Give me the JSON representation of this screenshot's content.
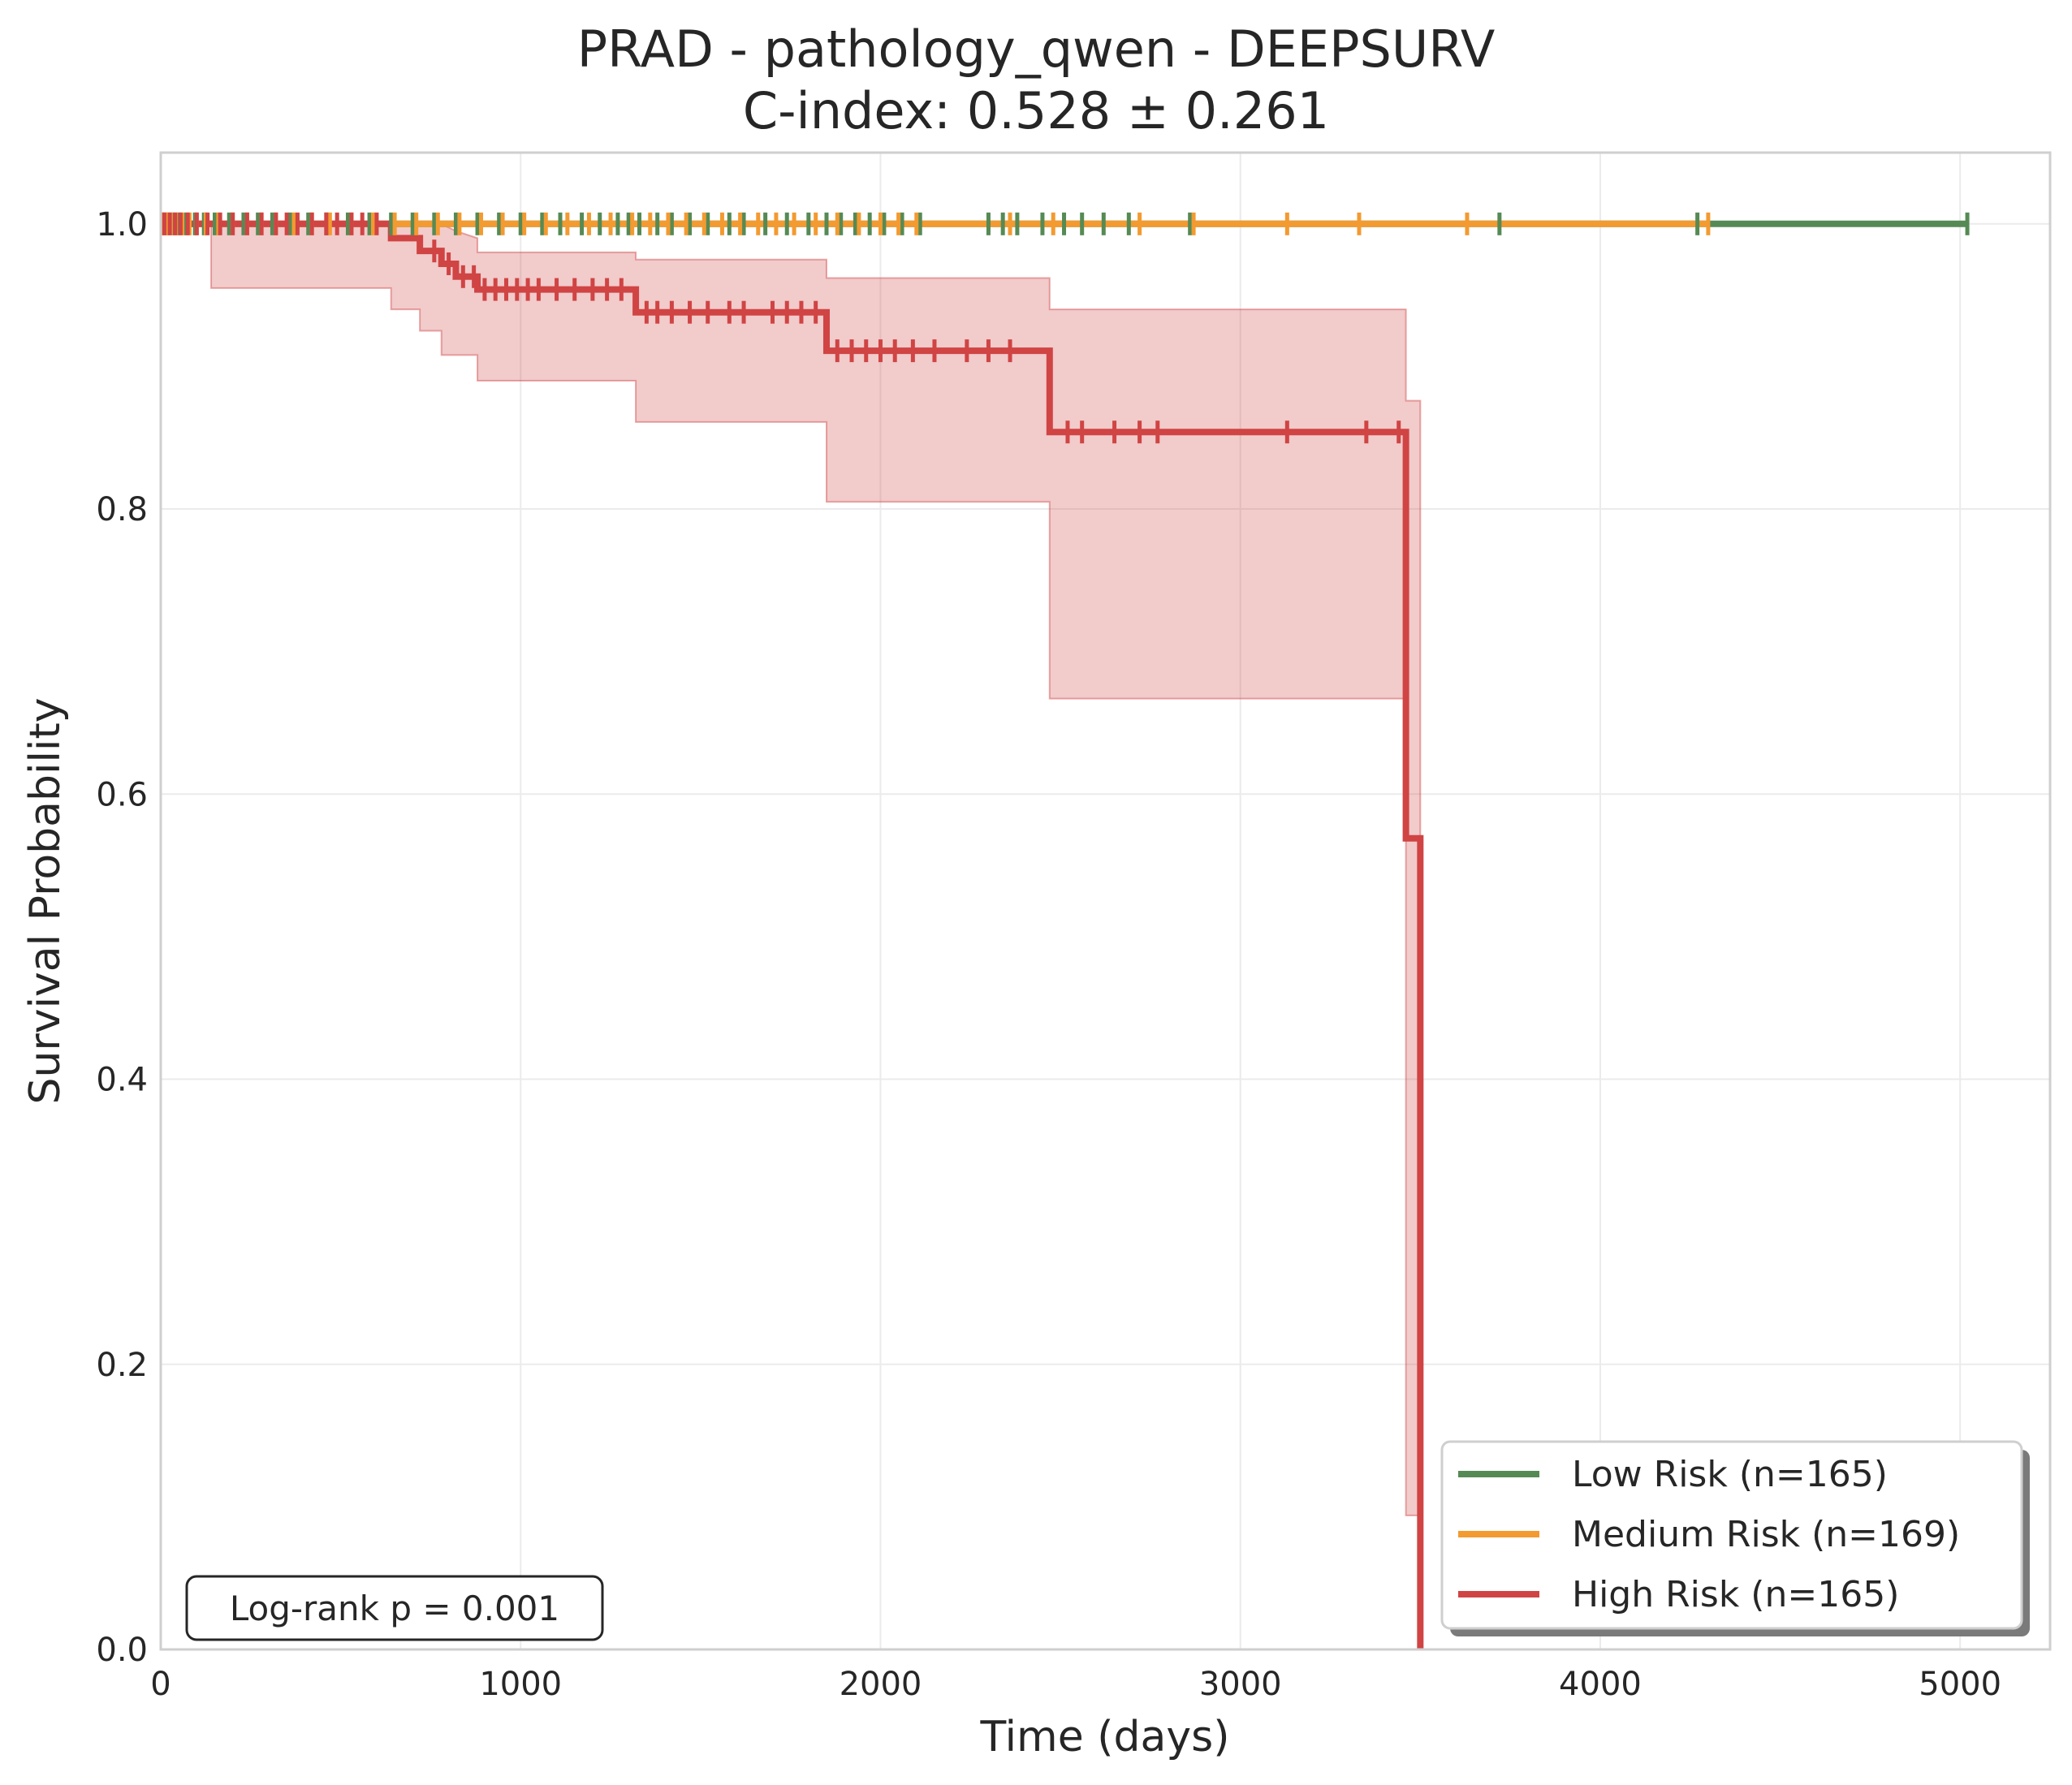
{
  "chart_data": {
    "type": "line",
    "subtype": "kaplan-meier",
    "title": "PRAD - pathology_qwen - DEEPSURV",
    "subtitle": "C-index: 0.528 ± 0.261",
    "xlabel": "Time (days)",
    "ylabel": "Survival Probability",
    "xlim": [
      0,
      5250
    ],
    "ylim": [
      0,
      1.05
    ],
    "xticks": [
      0,
      1000,
      2000,
      3000,
      4000,
      5000
    ],
    "yticks": [
      0.0,
      0.2,
      0.4,
      0.6,
      0.8,
      1.0
    ],
    "xtick_labels": [
      "0",
      "1000",
      "2000",
      "3000",
      "4000",
      "5000"
    ],
    "ytick_labels": [
      "0.0",
      "0.2",
      "0.4",
      "0.6",
      "0.8",
      "1.0"
    ],
    "grid": true,
    "legend_position": "bottom-right",
    "annotation": "Log-rank p = 0.001",
    "series": [
      {
        "name": "Low Risk (n=165)",
        "color": "#558a55",
        "steps": [
          [
            0,
            1.0
          ],
          [
            5020,
            1.0
          ]
        ],
        "censor_times": [
          8,
          20,
          35,
          50,
          70,
          95,
          120,
          150,
          190,
          230,
          270,
          310,
          360,
          410,
          460,
          520,
          580,
          640,
          700,
          760,
          820,
          880,
          940,
          1000,
          1060,
          1110,
          1170,
          1220,
          1270,
          1300,
          1330,
          1380,
          1420,
          1470,
          1520,
          1580,
          1620,
          1680,
          1740,
          1800,
          1850,
          1890,
          1930,
          1970,
          2010,
          2060,
          2110,
          2300,
          2340,
          2380,
          2450,
          2510,
          2560,
          2620,
          2690,
          2860,
          3720,
          4270,
          5020
        ]
      },
      {
        "name": "Medium Risk (n=169)",
        "color": "#f39a30",
        "steps": [
          [
            0,
            1.0
          ],
          [
            4300,
            1.0
          ]
        ],
        "censor_times": [
          5,
          15,
          28,
          42,
          60,
          80,
          100,
          125,
          160,
          200,
          240,
          280,
          320,
          370,
          420,
          470,
          530,
          590,
          650,
          710,
          770,
          830,
          890,
          950,
          1010,
          1070,
          1130,
          1190,
          1250,
          1310,
          1360,
          1410,
          1460,
          1510,
          1560,
          1610,
          1660,
          1710,
          1760,
          1820,
          1880,
          1940,
          2000,
          2050,
          2100,
          2360,
          2480,
          2720,
          2870,
          3130,
          3330,
          3630,
          4300
        ]
      },
      {
        "name": "High Risk (n=165)",
        "color": "#d04444",
        "steps": [
          [
            0,
            1.0
          ],
          [
            640,
            1.0
          ],
          [
            640,
            0.99
          ],
          [
            720,
            0.99
          ],
          [
            720,
            0.981
          ],
          [
            780,
            0.981
          ],
          [
            780,
            0.972
          ],
          [
            820,
            0.972
          ],
          [
            820,
            0.963
          ],
          [
            880,
            0.963
          ],
          [
            880,
            0.954
          ],
          [
            1320,
            0.954
          ],
          [
            1320,
            0.938
          ],
          [
            1850,
            0.938
          ],
          [
            1850,
            0.911
          ],
          [
            2470,
            0.911
          ],
          [
            2470,
            0.854
          ],
          [
            3460,
            0.854
          ],
          [
            3460,
            0.569
          ],
          [
            3500,
            0.569
          ],
          [
            3500,
            0.0
          ]
        ],
        "ci_upper": [
          [
            0,
            1.0
          ],
          [
            640,
            1.0
          ],
          [
            720,
            1.0
          ],
          [
            780,
            1.0
          ],
          [
            820,
            0.995
          ],
          [
            880,
            0.99
          ],
          [
            880,
            0.98
          ],
          [
            1320,
            0.98
          ],
          [
            1320,
            0.975
          ],
          [
            1850,
            0.975
          ],
          [
            1850,
            0.962
          ],
          [
            2470,
            0.962
          ],
          [
            2470,
            0.94
          ],
          [
            3460,
            0.94
          ],
          [
            3460,
            0.876
          ],
          [
            3500,
            0.876
          ]
        ],
        "ci_lower": [
          [
            0,
            1.0
          ],
          [
            140,
            1.0
          ],
          [
            140,
            0.955
          ],
          [
            640,
            0.955
          ],
          [
            640,
            0.94
          ],
          [
            720,
            0.94
          ],
          [
            720,
            0.925
          ],
          [
            780,
            0.925
          ],
          [
            780,
            0.908
          ],
          [
            880,
            0.908
          ],
          [
            880,
            0.89
          ],
          [
            1320,
            0.89
          ],
          [
            1320,
            0.861
          ],
          [
            1850,
            0.861
          ],
          [
            1850,
            0.805
          ],
          [
            2470,
            0.805
          ],
          [
            2470,
            0.667
          ],
          [
            3460,
            0.667
          ],
          [
            3460,
            0.094
          ],
          [
            3500,
            0.094
          ]
        ],
        "censor_times": [
          10,
          25,
          40,
          55,
          75,
          100,
          130,
          165,
          200,
          240,
          280,
          320,
          350,
          380,
          420,
          460,
          490,
          530,
          560,
          600,
          760,
          800,
          840,
          870,
          900,
          930,
          960,
          990,
          1020,
          1050,
          1100,
          1150,
          1200,
          1240,
          1280,
          1350,
          1380,
          1420,
          1470,
          1520,
          1580,
          1620,
          1700,
          1740,
          1780,
          1820,
          1880,
          1920,
          1960,
          2000,
          2040,
          2090,
          2150,
          2240,
          2300,
          2360,
          2520,
          2560,
          2650,
          2720,
          2770,
          3130,
          3350,
          3440
        ]
      }
    ]
  }
}
